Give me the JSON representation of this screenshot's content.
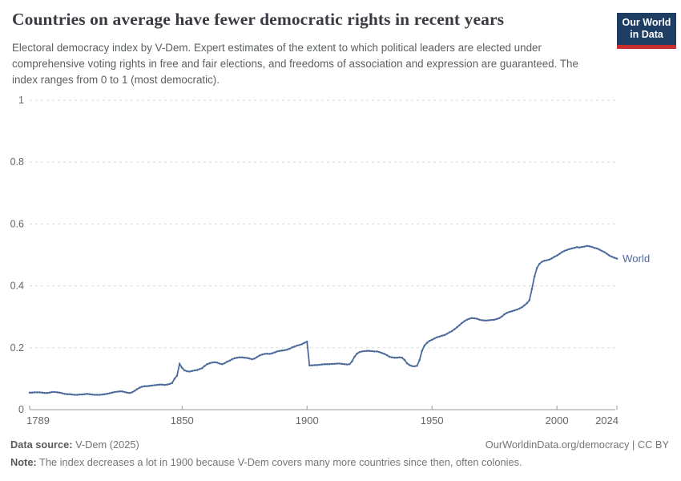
{
  "header": {
    "title": "Countries on average have fewer democratic rights in recent years",
    "subtitle": "Electoral democracy index by V-Dem. Expert estimates of the extent to which political leaders are elected under comprehensive voting rights in free and fair elections, and freedoms of association and expression are guaranteed. The index ranges from 0 to 1 (most democratic).",
    "logo": {
      "line1": "Our World",
      "line2": "in Data"
    }
  },
  "footer": {
    "source_label": "Data source:",
    "source_value": " V-Dem (2025)",
    "credit": "OurWorldinData.org/democracy | CC BY",
    "note_label": "Note:",
    "note_value": " The index decreases a lot in 1900 because V-Dem covers many more countries since then, often colonies."
  },
  "colors": {
    "line": "#4c6a9c",
    "grid": "#d9d9d9",
    "axis": "#9a9a9a",
    "tick_text": "#666666",
    "logo_bg": "#1d3d63",
    "logo_stripe": "#c5302c"
  },
  "chart_data": {
    "type": "line",
    "title": "Countries on average have fewer democratic rights in recent years",
    "ylabel": "Electoral democracy index",
    "xlim": [
      1789,
      2024
    ],
    "ylim": [
      0,
      1
    ],
    "xticks": [
      1789,
      1850,
      1900,
      1950,
      2000,
      2024
    ],
    "yticks": [
      0,
      0.2,
      0.4,
      0.6,
      0.8,
      1
    ],
    "ytick_labels": [
      "0",
      "0.2",
      "0.4",
      "0.6",
      "0.8",
      "1"
    ],
    "grid": "horizontal-dashed",
    "legend": "end-of-line-label",
    "series": [
      {
        "name": "World",
        "start_year": 1789,
        "end_year": 2024,
        "values": [
          0.055,
          0.055,
          0.056,
          0.056,
          0.056,
          0.055,
          0.054,
          0.054,
          0.055,
          0.057,
          0.057,
          0.056,
          0.055,
          0.053,
          0.051,
          0.05,
          0.05,
          0.049,
          0.048,
          0.048,
          0.049,
          0.049,
          0.05,
          0.051,
          0.05,
          0.049,
          0.048,
          0.048,
          0.048,
          0.049,
          0.05,
          0.051,
          0.053,
          0.055,
          0.057,
          0.058,
          0.059,
          0.059,
          0.057,
          0.055,
          0.054,
          0.056,
          0.061,
          0.066,
          0.071,
          0.074,
          0.076,
          0.076,
          0.077,
          0.078,
          0.079,
          0.08,
          0.081,
          0.081,
          0.08,
          0.081,
          0.083,
          0.086,
          0.1,
          0.11,
          0.148,
          0.135,
          0.127,
          0.124,
          0.123,
          0.125,
          0.127,
          0.128,
          0.131,
          0.134,
          0.141,
          0.147,
          0.15,
          0.152,
          0.153,
          0.152,
          0.149,
          0.147,
          0.15,
          0.155,
          0.158,
          0.163,
          0.166,
          0.168,
          0.169,
          0.169,
          0.168,
          0.167,
          0.165,
          0.163,
          0.165,
          0.17,
          0.175,
          0.178,
          0.18,
          0.181,
          0.18,
          0.182,
          0.185,
          0.188,
          0.19,
          0.191,
          0.192,
          0.194,
          0.197,
          0.201,
          0.204,
          0.207,
          0.209,
          0.212,
          0.216,
          0.22,
          0.143,
          0.143,
          0.144,
          0.144,
          0.145,
          0.146,
          0.147,
          0.147,
          0.147,
          0.148,
          0.148,
          0.149,
          0.149,
          0.148,
          0.147,
          0.146,
          0.147,
          0.156,
          0.171,
          0.181,
          0.186,
          0.188,
          0.189,
          0.19,
          0.19,
          0.189,
          0.188,
          0.188,
          0.186,
          0.183,
          0.18,
          0.176,
          0.171,
          0.169,
          0.168,
          0.168,
          0.169,
          0.168,
          0.161,
          0.15,
          0.144,
          0.141,
          0.14,
          0.142,
          0.16,
          0.19,
          0.207,
          0.216,
          0.222,
          0.226,
          0.23,
          0.234,
          0.236,
          0.239,
          0.241,
          0.245,
          0.25,
          0.254,
          0.26,
          0.266,
          0.273,
          0.28,
          0.286,
          0.291,
          0.294,
          0.296,
          0.295,
          0.294,
          0.291,
          0.289,
          0.288,
          0.288,
          0.289,
          0.29,
          0.291,
          0.293,
          0.296,
          0.301,
          0.308,
          0.313,
          0.316,
          0.318,
          0.321,
          0.323,
          0.327,
          0.331,
          0.337,
          0.344,
          0.354,
          0.39,
          0.43,
          0.458,
          0.471,
          0.478,
          0.481,
          0.483,
          0.485,
          0.489,
          0.494,
          0.498,
          0.503,
          0.509,
          0.513,
          0.516,
          0.519,
          0.521,
          0.523,
          0.525,
          0.524,
          0.526,
          0.527,
          0.529,
          0.528,
          0.526,
          0.523,
          0.521,
          0.517,
          0.513,
          0.509,
          0.504,
          0.498,
          0.494,
          0.491,
          0.488
        ]
      }
    ]
  }
}
